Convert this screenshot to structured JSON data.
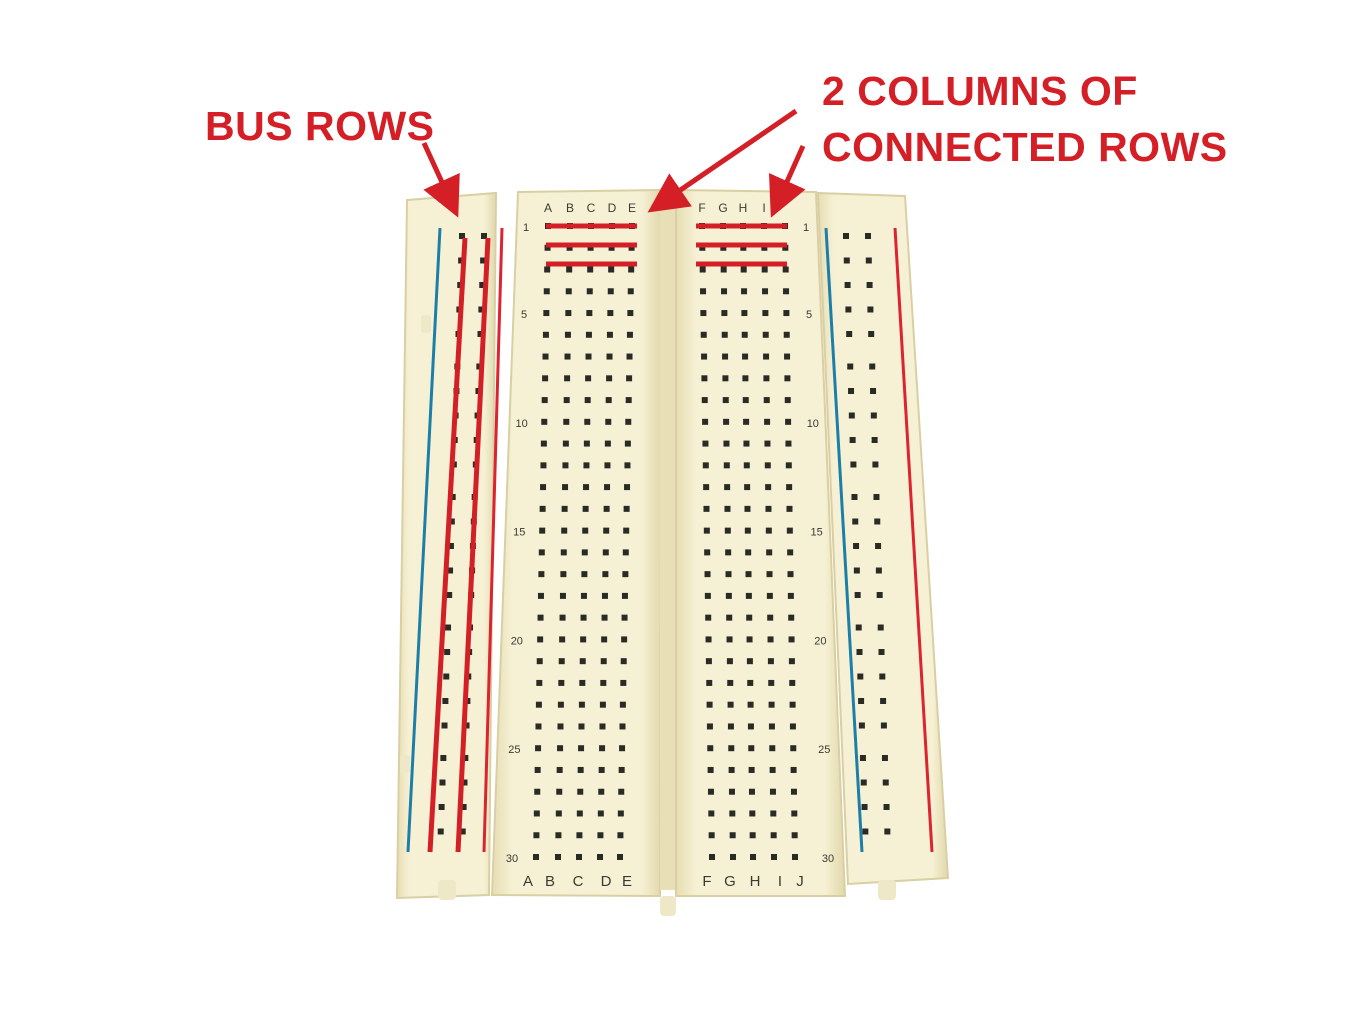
{
  "annotations": {
    "bus_rows": "BUS ROWS",
    "columns_line1": "2 COLUMNS OF",
    "columns_line2": "CONNECTED ROWS",
    "annotation_color": "#d41f26"
  },
  "breadboard": {
    "top_letters_left": [
      "A",
      "B",
      "C",
      "D",
      "E"
    ],
    "top_letters_right": [
      "F",
      "G",
      "H",
      "I",
      ""
    ],
    "bottom_letters_left": [
      "A",
      "B",
      "C",
      "D",
      "E"
    ],
    "bottom_letters_right": [
      "F",
      "G",
      "H",
      "I",
      "J"
    ],
    "row_numbers_left": [
      "1",
      "5",
      "10",
      "15",
      "20",
      "25",
      "30"
    ],
    "row_numbers_right": [
      "1",
      "5",
      "10",
      "15",
      "20",
      "25",
      "30"
    ],
    "rows": 30,
    "body_color": "#f4efcf",
    "hole_color": "#2b2b25",
    "rail_blue": "#1d7fa8",
    "rail_red": "#dc2430"
  }
}
